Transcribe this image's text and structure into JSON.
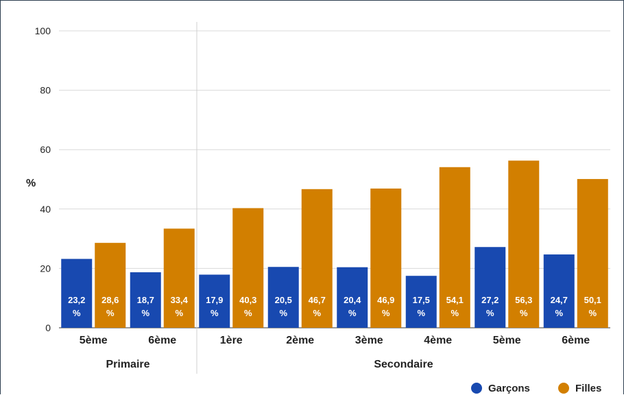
{
  "chart_data": {
    "type": "bar",
    "ylabel": "%",
    "ylim": [
      0,
      100
    ],
    "yticks": [
      0,
      20,
      40,
      60,
      80,
      100
    ],
    "grid": true,
    "legend_position": "bottom-right",
    "categories": [
      "5ème",
      "6ème",
      "1ère",
      "2ème",
      "3ème",
      "4ème",
      "5ème",
      "6ème"
    ],
    "groups": [
      {
        "label": "Primaire",
        "count": 2
      },
      {
        "label": "Secondaire",
        "count": 6
      }
    ],
    "series": [
      {
        "name": "Garçons",
        "color": "#1849b0",
        "values": [
          23.2,
          18.7,
          17.9,
          20.5,
          20.4,
          17.5,
          27.2,
          24.7
        ],
        "labels": [
          "23,2 %",
          "18,7 %",
          "17,9 %",
          "20,5 %",
          "20,4 %",
          "17,5 %",
          "27,2 %",
          "24,7 %"
        ]
      },
      {
        "name": "Filles",
        "color": "#d27f00",
        "values": [
          28.6,
          33.4,
          40.3,
          46.7,
          46.9,
          54.1,
          56.3,
          50.1
        ],
        "labels": [
          "28,6 %",
          "33,4 %",
          "40,3 %",
          "46,7 %",
          "46,9 %",
          "54,1 %",
          "56,3 %",
          "50,1 %"
        ]
      }
    ]
  }
}
